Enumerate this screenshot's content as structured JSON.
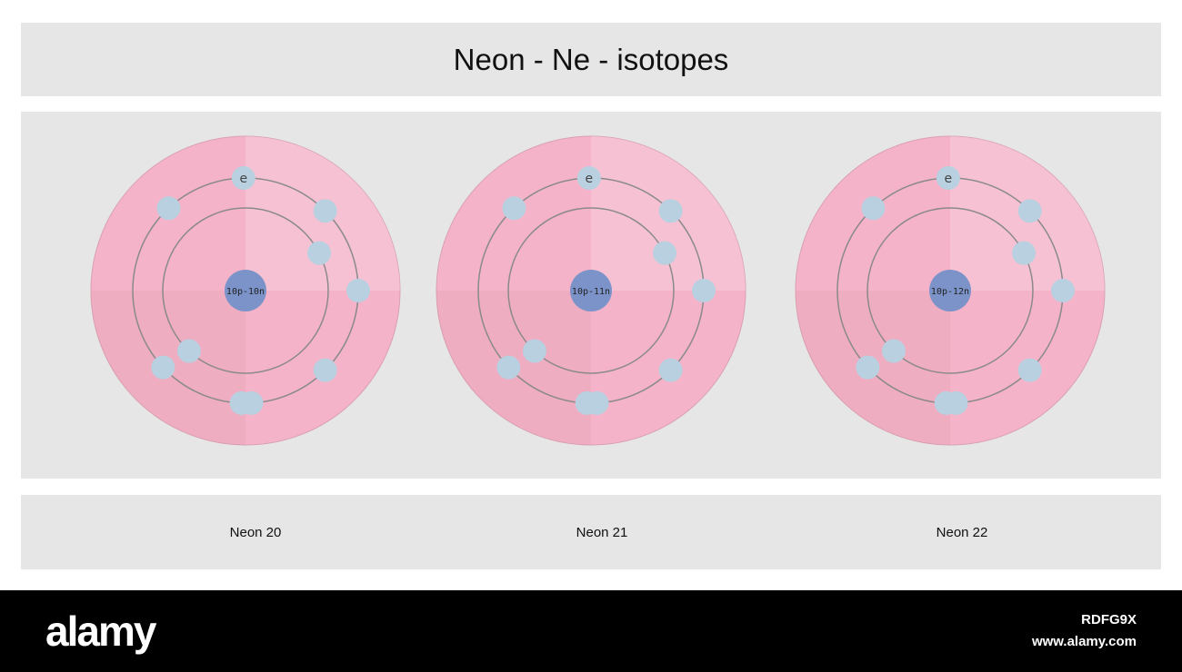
{
  "title": "Neon - Ne - isotopes",
  "electron_label": "e",
  "shells": [
    2,
    8
  ],
  "isotopes": [
    {
      "nucleus": "10p-10n",
      "label": "Neon 20"
    },
    {
      "nucleus": "10p-11n",
      "label": "Neon 21"
    },
    {
      "nucleus": "10p-12n",
      "label": "Neon 22"
    }
  ],
  "colors": {
    "atom": "#f4b3c8",
    "electron": "#b8d0e0",
    "nucleus": "#7b93c9",
    "orbit": "#8a8a8a"
  },
  "footer": {
    "logo": "alamy",
    "image_code": "RDFG9X",
    "url": "www.alamy.com"
  }
}
